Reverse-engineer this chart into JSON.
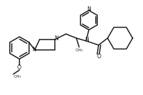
{
  "bg_color": "#ffffff",
  "line_color": "#1a1a1a",
  "line_width": 1.1,
  "figsize": [
    2.07,
    1.37
  ],
  "dpi": 100,
  "xlim": [
    0,
    207
  ],
  "ylim": [
    0,
    137
  ]
}
